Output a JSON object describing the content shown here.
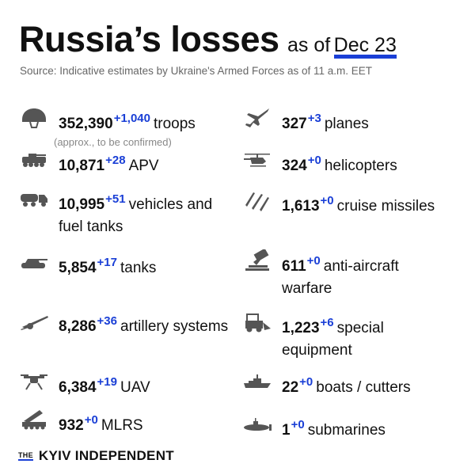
{
  "header": {
    "title": "Russia’s losses",
    "as_of": "as of",
    "date": "Dec 23",
    "source": "Source: Indicative estimates by Ukraine's Armed Forces as of 11 a.m. EET"
  },
  "colors": {
    "accent": "#1a3fd6",
    "icon": "#555555"
  },
  "left": [
    {
      "icon": "helmet-icon",
      "value": "352,390",
      "change": "+1,040",
      "label": "troops",
      "note": "(approx., to be confirmed)"
    },
    {
      "icon": "apv-icon",
      "value": "10,871",
      "change": "+28",
      "label": "APV"
    },
    {
      "icon": "fuel-truck-icon",
      "value": "10,995",
      "change": "+51",
      "label": "vehicles and fuel tanks"
    },
    {
      "icon": "tank-icon",
      "value": "5,854",
      "change": "+17",
      "label": "tanks"
    },
    {
      "icon": "artillery-icon",
      "value": "8,286",
      "change": "+36",
      "label": "artillery systems"
    },
    {
      "icon": "drone-icon",
      "value": "6,384",
      "change": "+19",
      "label": "UAV"
    },
    {
      "icon": "mlrs-icon",
      "value": "932",
      "change": "+0",
      "label": "MLRS"
    }
  ],
  "right": [
    {
      "icon": "plane-icon",
      "value": "327",
      "change": "+3",
      "label": "planes"
    },
    {
      "icon": "helicopter-icon",
      "value": "324",
      "change": "+0",
      "label": "helicopters"
    },
    {
      "icon": "missile-icon",
      "value": "1,613",
      "change": "+0",
      "label": "cruise missiles"
    },
    {
      "icon": "anti-aircraft-icon",
      "value": "611",
      "change": "+0",
      "label": "anti-aircraft warfare"
    },
    {
      "icon": "bulldozer-icon",
      "value": "1,223",
      "change": "+6",
      "label": "special equipment"
    },
    {
      "icon": "ship-icon",
      "value": "22",
      "change": "+0",
      "label": "boats / cutters"
    },
    {
      "icon": "submarine-icon",
      "value": "1",
      "change": "+0",
      "label": "submarines"
    }
  ],
  "footer": {
    "logo_the": "THE",
    "logo_name": "KYIV INDEPENDENT"
  }
}
